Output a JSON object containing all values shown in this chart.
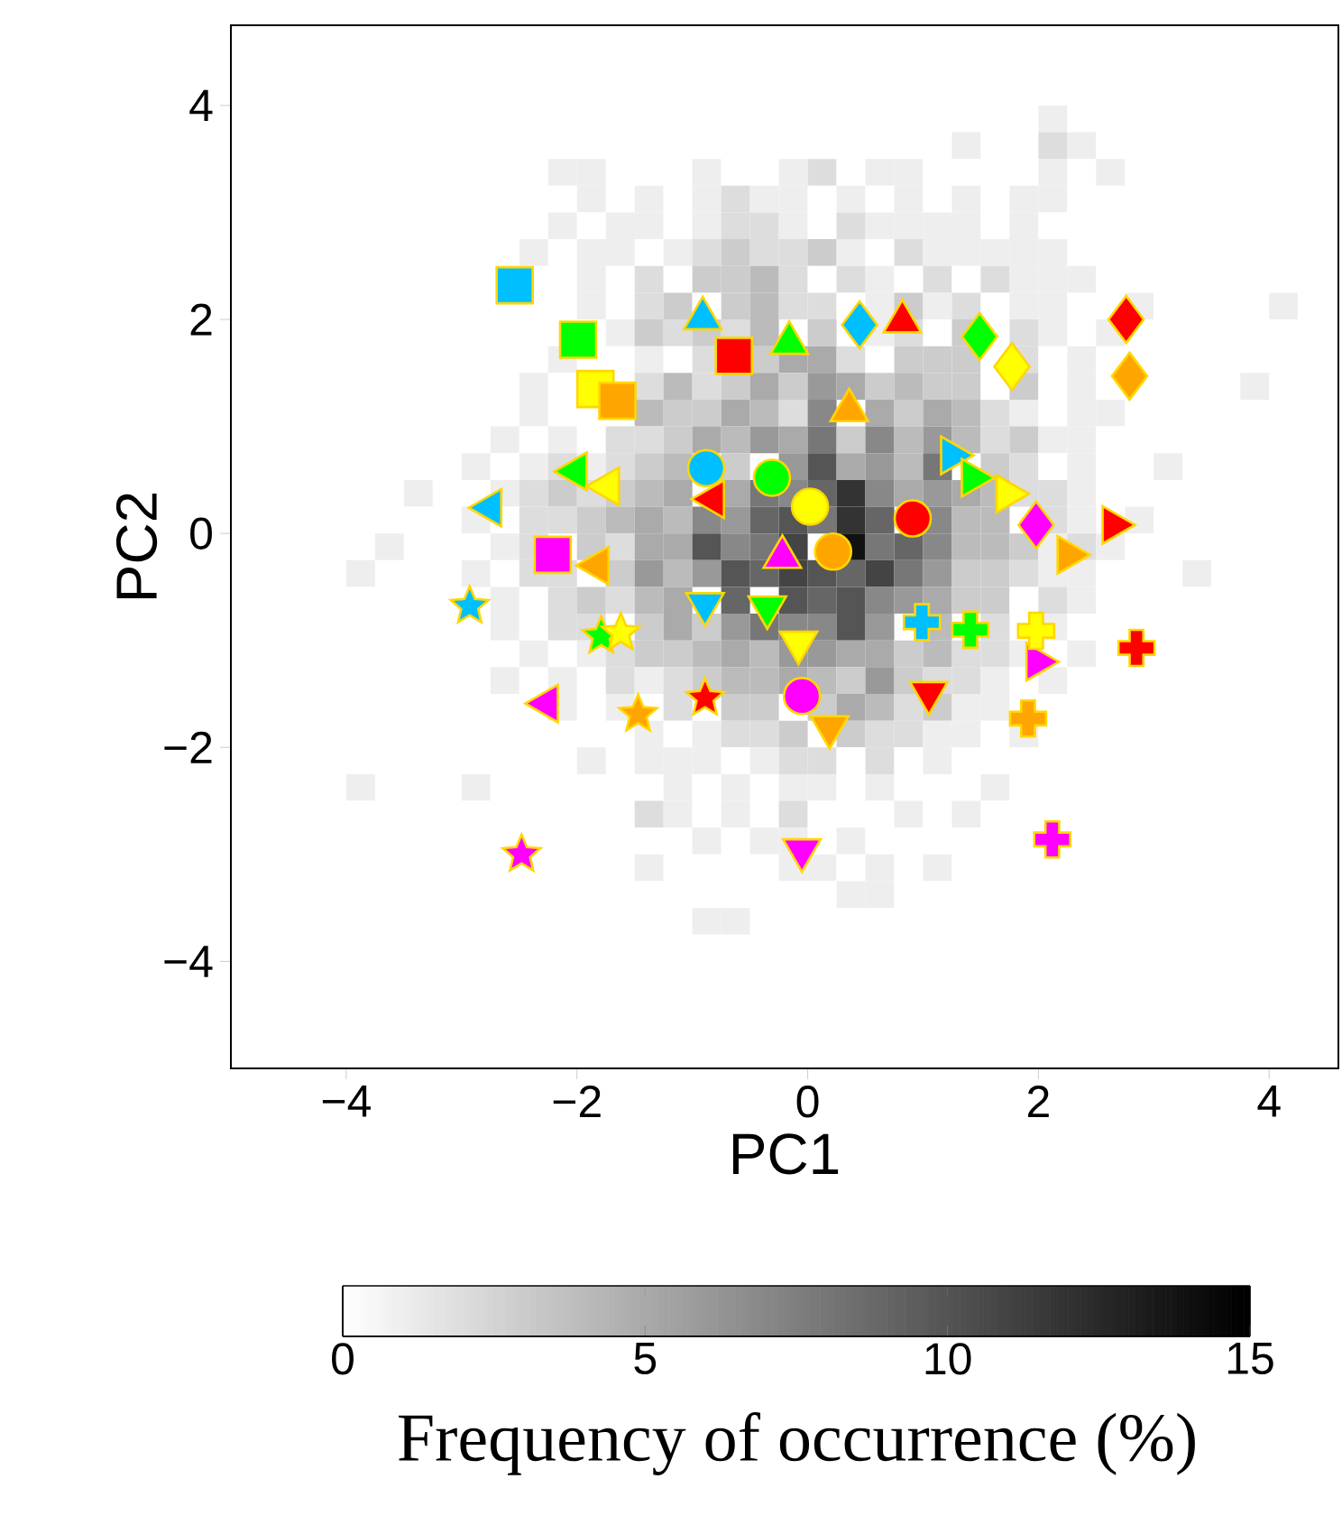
{
  "chart_data": {
    "type": "heatmap",
    "xlabel": "PC1",
    "ylabel": "PC2",
    "clabel": "Frequency of occurrence (%)",
    "xlim": [
      -5,
      4.6
    ],
    "ylim": [
      -5,
      4.75
    ],
    "xticks": [
      {
        "value": -4,
        "label": "−4"
      },
      {
        "value": -2,
        "label": "−2"
      },
      0,
      2,
      4
    ],
    "yticks": [
      {
        "value": -4,
        "label": "−4"
      },
      {
        "value": -2,
        "label": "−2"
      },
      0,
      2,
      4
    ],
    "clim": [
      0,
      15
    ],
    "cticks": [
      0,
      5,
      10,
      15
    ],
    "x": [
      -4.375,
      -4.125,
      -3.875,
      -3.625,
      -3.375,
      -3.125,
      -2.875,
      -2.625,
      -2.375,
      -2.125,
      -1.875,
      -1.625,
      -1.375,
      -1.125,
      -0.875,
      -0.625,
      -0.375,
      -0.125,
      0.125,
      0.375,
      0.625,
      0.875,
      1.125,
      1.375,
      1.625,
      1.875,
      2.125,
      2.375,
      2.625,
      2.875,
      3.125,
      3.375,
      3.625,
      3.875,
      4.125,
      4.375
    ],
    "y": [
      3.875,
      3.625,
      3.375,
      3.125,
      2.875,
      2.625,
      2.375,
      2.125,
      1.875,
      1.625,
      1.375,
      1.125,
      0.875,
      0.625,
      0.375,
      0.125,
      -0.125,
      -0.375,
      -0.625,
      -0.875,
      -1.125,
      -1.375,
      -1.625,
      -1.875,
      -2.125,
      -2.375,
      -2.625,
      -2.875,
      -3.125,
      -3.375,
      -3.625,
      -3.875
    ],
    "cells": [
      [
        0,
        0,
        0,
        0,
        0,
        0,
        0,
        0,
        0,
        0,
        0,
        0,
        0,
        0,
        0,
        0,
        0,
        0,
        0,
        0,
        0,
        0,
        0,
        0,
        0,
        0,
        1,
        0,
        0,
        0,
        0,
        0,
        0,
        0,
        0,
        0
      ],
      [
        0,
        0,
        0,
        0,
        0,
        0,
        0,
        0,
        0,
        0,
        0,
        0,
        0,
        0,
        0,
        0,
        0,
        0,
        0,
        0,
        0,
        0,
        0,
        1,
        0,
        0,
        2,
        1,
        0,
        0,
        0,
        0,
        0,
        0,
        0,
        0
      ],
      [
        0,
        0,
        0,
        0,
        0,
        0,
        0,
        0,
        0,
        1,
        1,
        0,
        0,
        0,
        1,
        0,
        0,
        1,
        2,
        0,
        1,
        1,
        0,
        0,
        0,
        0,
        1,
        0,
        1,
        0,
        0,
        0,
        0,
        0,
        0,
        0
      ],
      [
        0,
        0,
        0,
        0,
        0,
        0,
        0,
        0,
        0,
        0,
        1,
        0,
        1,
        0,
        1,
        2,
        1,
        1,
        0,
        1,
        0,
        1,
        0,
        1,
        0,
        1,
        1,
        0,
        0,
        0,
        0,
        0,
        0,
        0,
        0,
        0
      ],
      [
        0,
        0,
        0,
        0,
        0,
        0,
        0,
        0,
        0,
        1,
        0,
        1,
        1,
        0,
        1,
        2,
        2,
        1,
        0,
        2,
        1,
        1,
        1,
        1,
        0,
        1,
        0,
        0,
        0,
        0,
        0,
        0,
        0,
        0,
        0,
        0
      ],
      [
        0,
        0,
        0,
        0,
        0,
        0,
        0,
        0,
        1,
        0,
        1,
        1,
        0,
        1,
        2,
        3,
        2,
        2,
        3,
        1,
        0,
        2,
        1,
        1,
        1,
        1,
        1,
        0,
        0,
        0,
        0,
        0,
        0,
        0,
        0,
        0
      ],
      [
        0,
        0,
        0,
        0,
        0,
        0,
        0,
        null,
        0,
        0,
        1,
        0,
        2,
        0,
        3,
        3,
        4,
        2,
        0,
        2,
        1,
        0,
        2,
        0,
        2,
        1,
        1,
        1,
        0,
        0,
        0,
        0,
        0,
        0,
        0,
        0
      ],
      [
        0,
        0,
        0,
        0,
        0,
        0,
        0,
        0,
        0,
        0,
        1,
        0,
        2,
        3,
        0,
        3,
        4,
        2,
        2,
        0,
        1,
        3,
        1,
        2,
        0,
        1,
        1,
        0,
        0,
        1,
        0,
        0,
        0,
        0,
        1,
        0
      ],
      [
        0,
        0,
        0,
        0,
        0,
        0,
        0,
        0,
        0,
        null,
        null,
        1,
        3,
        2,
        3,
        2,
        4,
        null,
        3,
        null,
        1,
        2,
        0,
        3,
        0,
        2,
        1,
        0,
        1,
        0,
        0,
        0,
        0,
        0,
        0,
        0
      ],
      [
        0,
        0,
        0,
        0,
        0,
        0,
        0,
        0,
        0,
        1,
        0,
        0,
        1,
        0,
        2,
        null,
        3,
        5,
        5,
        2,
        0,
        3,
        3,
        3,
        0,
        2,
        0,
        1,
        0,
        0,
        0,
        0,
        0,
        0,
        0,
        0
      ],
      [
        0,
        0,
        0,
        0,
        0,
        0,
        0,
        0,
        1,
        0,
        null,
        null,
        2,
        4,
        2,
        3,
        5,
        3,
        6,
        5,
        3,
        4,
        3,
        3,
        0,
        3,
        0,
        1,
        0,
        null,
        0,
        0,
        0,
        1,
        0,
        0
      ],
      [
        0,
        0,
        0,
        0,
        0,
        0,
        0,
        0,
        1,
        0,
        0,
        null,
        4,
        3,
        3,
        5,
        4,
        2,
        7,
        null,
        5,
        3,
        5,
        4,
        2,
        1,
        0,
        1,
        1,
        0,
        0,
        0,
        0,
        0,
        0,
        0
      ],
      [
        0,
        0,
        0,
        0,
        0,
        0,
        0,
        1,
        0,
        1,
        0,
        2,
        2,
        3,
        5,
        4,
        6,
        5,
        8,
        3,
        7,
        4,
        6,
        4,
        2,
        3,
        1,
        1,
        0,
        0,
        0,
        0,
        0,
        0,
        0,
        0
      ],
      [
        0,
        0,
        0,
        0,
        0,
        0,
        1,
        0,
        1,
        2,
        1,
        2,
        3,
        4,
        null,
        3,
        null,
        6,
        10,
        5,
        6,
        4,
        8,
        null,
        3,
        2,
        0,
        1,
        0,
        0,
        1,
        0,
        0,
        0,
        0,
        0
      ],
      [
        0,
        0,
        0,
        0,
        1,
        0,
        0,
        1,
        2,
        3,
        2,
        3,
        4,
        5,
        null,
        5,
        8,
        7,
        9,
        12,
        7,
        5,
        6,
        5,
        4,
        2,
        2,
        1,
        0,
        0,
        0,
        0,
        0,
        0,
        0,
        0
      ],
      [
        0,
        0,
        0,
        0,
        0,
        0,
        1,
        0,
        2,
        2,
        3,
        4,
        5,
        4,
        7,
        6,
        9,
        10,
        8,
        12,
        9,
        null,
        7,
        4,
        4,
        null,
        2,
        1,
        null,
        1,
        0,
        0,
        0,
        0,
        0,
        0
      ],
      [
        0,
        0,
        0,
        1,
        0,
        0,
        0,
        1,
        2,
        null,
        3,
        2,
        5,
        5,
        10,
        7,
        8,
        11,
        null,
        14,
        8,
        9,
        7,
        4,
        4,
        3,
        1,
        2,
        1,
        0,
        0,
        0,
        0,
        0,
        0,
        0
      ],
      [
        0,
        0,
        1,
        0,
        0,
        0,
        1,
        0,
        2,
        2,
        null,
        3,
        6,
        4,
        6,
        10,
        9,
        11,
        10,
        9,
        11,
        8,
        6,
        3,
        3,
        2,
        1,
        1,
        0,
        0,
        0,
        1,
        0,
        0,
        0,
        0
      ],
      [
        0,
        0,
        0,
        0,
        0,
        0,
        null,
        1,
        0,
        2,
        3,
        2,
        4,
        5,
        null,
        9,
        null,
        10,
        9,
        10,
        7,
        6,
        5,
        3,
        3,
        0,
        2,
        1,
        0,
        0,
        0,
        0,
        0,
        0,
        0,
        0
      ],
      [
        0,
        0,
        0,
        0,
        0,
        0,
        0,
        1,
        0,
        2,
        2,
        null,
        3,
        5,
        3,
        6,
        8,
        7,
        7,
        10,
        6,
        null,
        4,
        null,
        2,
        null,
        1,
        0,
        0,
        0,
        0,
        0,
        0,
        0,
        0,
        0
      ],
      [
        0,
        0,
        0,
        0,
        0,
        0,
        0,
        0,
        1,
        0,
        1,
        2,
        3,
        3,
        4,
        5,
        4,
        6,
        6,
        5,
        5,
        3,
        4,
        2,
        2,
        1,
        0,
        1,
        0,
        null,
        0,
        0,
        0,
        0,
        0,
        0
      ],
      [
        0,
        0,
        0,
        0,
        0,
        0,
        0,
        1,
        0,
        1,
        0,
        2,
        1,
        2,
        3,
        4,
        4,
        5,
        4,
        3,
        6,
        3,
        2,
        2,
        1,
        0,
        1,
        0,
        0,
        0,
        0,
        0,
        0,
        0,
        0,
        0
      ],
      [
        0,
        0,
        0,
        0,
        0,
        0,
        0,
        0,
        0,
        1,
        0,
        1,
        0,
        2,
        null,
        3,
        3,
        null,
        3,
        5,
        4,
        2,
        3,
        1,
        1,
        null,
        0,
        0,
        0,
        0,
        0,
        0,
        0,
        0,
        0,
        0
      ],
      [
        0,
        0,
        0,
        0,
        0,
        0,
        0,
        0,
        0,
        0,
        0,
        0,
        1,
        0,
        1,
        2,
        2,
        3,
        null,
        3,
        2,
        2,
        1,
        1,
        0,
        1,
        0,
        0,
        0,
        0,
        0,
        0,
        0,
        0,
        0,
        0
      ],
      [
        0,
        0,
        0,
        0,
        0,
        0,
        0,
        0,
        0,
        0,
        1,
        0,
        1,
        1,
        1,
        0,
        1,
        2,
        2,
        0,
        2,
        0,
        1,
        0,
        0,
        0,
        0,
        0,
        0,
        0,
        0,
        0,
        0,
        0,
        0,
        0
      ],
      [
        0,
        0,
        1,
        0,
        0,
        0,
        1,
        0,
        0,
        0,
        0,
        0,
        0,
        1,
        0,
        1,
        0,
        1,
        1,
        0,
        1,
        0,
        0,
        0,
        1,
        0,
        0,
        0,
        0,
        0,
        0,
        0,
        0,
        0,
        0,
        0
      ],
      [
        0,
        0,
        0,
        0,
        0,
        0,
        0,
        0,
        0,
        0,
        0,
        0,
        2,
        1,
        0,
        1,
        0,
        2,
        0,
        0,
        0,
        1,
        0,
        1,
        0,
        0,
        0,
        0,
        0,
        0,
        0,
        0,
        0,
        0,
        0,
        0
      ],
      [
        0,
        0,
        0,
        0,
        0,
        0,
        0,
        0,
        0,
        0,
        0,
        0,
        0,
        0,
        1,
        0,
        1,
        1,
        0,
        1,
        0,
        0,
        0,
        0,
        0,
        0,
        null,
        0,
        0,
        0,
        0,
        0,
        0,
        0,
        0,
        0
      ],
      [
        0,
        0,
        0,
        0,
        0,
        0,
        0,
        0,
        0,
        0,
        0,
        0,
        1,
        0,
        0,
        0,
        0,
        1,
        1,
        0,
        1,
        0,
        1,
        0,
        0,
        0,
        0,
        0,
        0,
        0,
        0,
        0,
        0,
        0,
        0,
        0
      ],
      [
        0,
        0,
        0,
        0,
        0,
        0,
        0,
        0,
        0,
        0,
        0,
        0,
        0,
        0,
        0,
        0,
        0,
        0,
        0,
        1,
        1,
        0,
        0,
        0,
        0,
        0,
        0,
        0,
        0,
        0,
        0,
        0,
        0,
        0,
        0,
        0
      ],
      [
        0,
        0,
        0,
        0,
        0,
        0,
        0,
        0,
        0,
        0,
        0,
        0,
        0,
        0,
        1,
        1,
        0,
        0,
        0,
        0,
        0,
        0,
        0,
        0,
        0,
        0,
        0,
        0,
        0,
        0,
        0,
        0,
        0,
        0,
        0,
        0
      ],
      [
        0,
        0,
        0,
        0,
        0,
        0,
        0,
        0,
        0,
        0,
        0,
        0,
        0,
        0,
        0,
        0,
        0,
        0,
        0,
        0,
        0,
        0,
        0,
        0,
        0,
        0,
        0,
        0,
        0,
        0,
        0,
        0,
        0,
        0,
        0,
        0
      ]
    ],
    "series": [
      {
        "type": "scatter",
        "marker": "square",
        "x": [
          -2.54,
          -1.99,
          -1.84,
          -1.65,
          -0.64,
          -2.21
        ],
        "values": [
          2.32,
          1.81,
          1.35,
          1.24,
          1.66,
          -0.2
        ],
        "colors": [
          "#00bfff",
          "#00ff00",
          "#ffff00",
          "#ffa500",
          "#ff0000",
          "#ff00ff"
        ]
      },
      {
        "type": "scatter",
        "marker": "triangle",
        "x": [
          -0.91,
          -0.16,
          0.82,
          0.36,
          -0.22
        ],
        "values": [
          2.01,
          1.78,
          1.98,
          1.15,
          -0.22
        ],
        "colors": [
          "#00bfff",
          "#00ff00",
          "#ff0000",
          "#ffa500",
          "#ff00ff"
        ]
      },
      {
        "type": "scatter",
        "marker": "diamond",
        "x": [
          0.45,
          1.49,
          1.77,
          2.76,
          2.79,
          1.98
        ],
        "values": [
          1.95,
          1.84,
          1.56,
          2.0,
          1.47,
          0.08
        ],
        "colors": [
          "#00bfff",
          "#00ff00",
          "#ffff00",
          "#ff0000",
          "#ffa500",
          "#ff00ff"
        ]
      },
      {
        "type": "scatter",
        "marker": "circle",
        "x": [
          -0.88,
          -0.31,
          0.02,
          0.22,
          0.91,
          -0.05
        ],
        "values": [
          0.61,
          0.52,
          0.25,
          -0.17,
          0.14,
          -1.52
        ],
        "colors": [
          "#00bfff",
          "#00ff00",
          "#ffff00",
          "#ffa500",
          "#ff0000",
          "#ff00ff"
        ]
      },
      {
        "type": "scatter",
        "marker": "triangle-left",
        "x": [
          -2.75,
          -2.01,
          -1.73,
          -0.82,
          -1.82,
          -2.26
        ],
        "values": [
          0.24,
          0.58,
          0.44,
          0.32,
          -0.3,
          -1.59
        ],
        "colors": [
          "#00bfff",
          "#00ff00",
          "#ffff00",
          "#ff0000",
          "#ffa500",
          "#ff00ff"
        ]
      },
      {
        "type": "scatter",
        "marker": "triangle-right",
        "x": [
          1.25,
          1.43,
          1.73,
          2.65,
          2.26,
          1.99
        ],
        "values": [
          0.73,
          0.52,
          0.37,
          0.08,
          -0.2,
          -1.2
        ],
        "colors": [
          "#00bfff",
          "#00ff00",
          "#ffff00",
          "#ff0000",
          "#ffa500",
          "#ff00ff"
        ]
      },
      {
        "type": "scatter",
        "marker": "triangle-down",
        "x": [
          -0.89,
          -0.35,
          -0.08,
          1.05,
          0.19,
          -0.05
        ],
        "values": [
          -0.66,
          -0.69,
          -1.02,
          -1.49,
          -1.81,
          -2.96
        ],
        "colors": [
          "#00bfff",
          "#00ff00",
          "#ffff00",
          "#ff0000",
          "#ffa500",
          "#ff00ff"
        ]
      },
      {
        "type": "scatter",
        "marker": "star",
        "x": [
          -2.93,
          -1.79,
          -1.62,
          -0.89,
          -1.47,
          -2.48
        ],
        "values": [
          -0.68,
          -0.96,
          -0.93,
          -1.54,
          -1.69,
          -3.0
        ],
        "colors": [
          "#00bfff",
          "#00ff00",
          "#ffff00",
          "#ff0000",
          "#ffa500",
          "#ff00ff"
        ]
      },
      {
        "type": "scatter",
        "marker": "cross",
        "x": [
          0.99,
          1.41,
          1.98,
          2.85,
          1.91,
          2.12
        ],
        "values": [
          -0.83,
          -0.9,
          -0.91,
          -1.07,
          -1.73,
          -2.86
        ],
        "colors": [
          "#00bfff",
          "#00ff00",
          "#ffff00",
          "#ff0000",
          "#ffa500",
          "#ff00ff"
        ]
      }
    ]
  }
}
